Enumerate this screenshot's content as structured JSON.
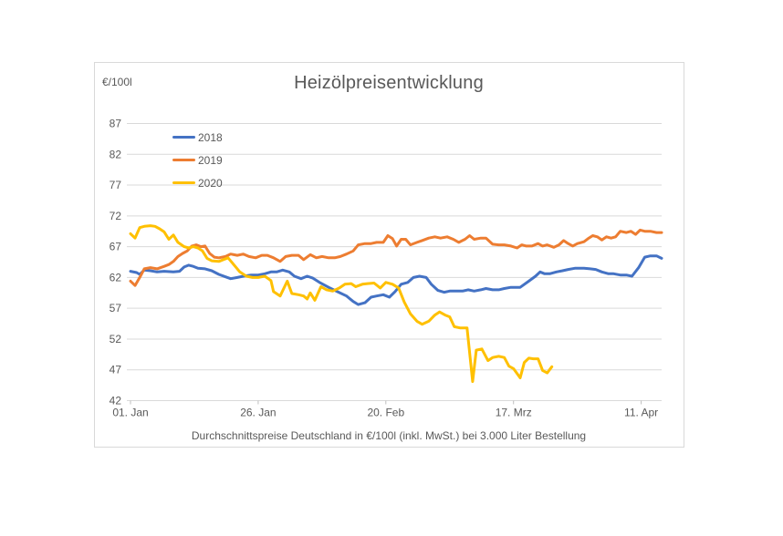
{
  "chart_data": {
    "type": "line",
    "title": "Heizölpreisentwicklung",
    "unit_label": "€/100l",
    "subtitle": "Durchschnittspreise Deutschland in €/100l (inkl. MwSt.) bei 3.000 Liter Bestellung",
    "grid": true,
    "legend_position": "top-left-inside",
    "ylim": [
      42,
      87
    ],
    "y_ticks": [
      42,
      47,
      52,
      57,
      62,
      67,
      72,
      77,
      82,
      87
    ],
    "xlim_days": [
      0,
      104
    ],
    "x_ticks": [
      {
        "day": 0,
        "label": "01. Jan"
      },
      {
        "day": 25,
        "label": "26. Jan"
      },
      {
        "day": 50,
        "label": "20. Feb"
      },
      {
        "day": 75,
        "label": "17. Mrz"
      },
      {
        "day": 100,
        "label": "11. Apr"
      }
    ],
    "colors": {
      "grid": "#d9d9d9",
      "axis": "#bfbfbf",
      "text": "#595959"
    },
    "series": [
      {
        "name": "2018",
        "color": "#4472C4",
        "points": [
          [
            0,
            63
          ],
          [
            1.2,
            62.8
          ],
          [
            1.8,
            62.5
          ],
          [
            2.7,
            63.2
          ],
          [
            3.9,
            63.1
          ],
          [
            5.2,
            62.9
          ],
          [
            6.6,
            63
          ],
          [
            8.4,
            62.9
          ],
          [
            9.6,
            63
          ],
          [
            10.5,
            63.7
          ],
          [
            11.4,
            64
          ],
          [
            12.3,
            63.8
          ],
          [
            13.2,
            63.5
          ],
          [
            14.6,
            63.4
          ],
          [
            15.9,
            63.1
          ],
          [
            17.3,
            62.5
          ],
          [
            18.6,
            62.1
          ],
          [
            19.6,
            61.8
          ],
          [
            20.9,
            62
          ],
          [
            22.1,
            62.2
          ],
          [
            23.6,
            62.4
          ],
          [
            25,
            62.4
          ],
          [
            26.3,
            62.6
          ],
          [
            27.5,
            62.9
          ],
          [
            28.6,
            62.9
          ],
          [
            29.8,
            63.2
          ],
          [
            31.1,
            62.9
          ],
          [
            32.1,
            62.2
          ],
          [
            33.4,
            61.8
          ],
          [
            34.6,
            62.2
          ],
          [
            35.7,
            61.9
          ],
          [
            37,
            61.2
          ],
          [
            38.8,
            60.4
          ],
          [
            40.5,
            59.7
          ],
          [
            42.3,
            59
          ],
          [
            43.6,
            58.1
          ],
          [
            44.6,
            57.6
          ],
          [
            45.9,
            57.9
          ],
          [
            47.1,
            58.8
          ],
          [
            48.2,
            59
          ],
          [
            49.5,
            59.2
          ],
          [
            50.7,
            58.8
          ],
          [
            51.8,
            59.7
          ],
          [
            53,
            60.9
          ],
          [
            54.3,
            61.2
          ],
          [
            55.4,
            62
          ],
          [
            56.6,
            62.2
          ],
          [
            57.9,
            62
          ],
          [
            58.9,
            60.9
          ],
          [
            60.2,
            59.9
          ],
          [
            61.4,
            59.6
          ],
          [
            62.5,
            59.8
          ],
          [
            63.8,
            59.8
          ],
          [
            65,
            59.8
          ],
          [
            66.1,
            60
          ],
          [
            67.3,
            59.8
          ],
          [
            68.6,
            60
          ],
          [
            69.6,
            60.2
          ],
          [
            70.9,
            60
          ],
          [
            72.1,
            60
          ],
          [
            73.2,
            60.2
          ],
          [
            74.5,
            60.4
          ],
          [
            76.3,
            60.4
          ],
          [
            78,
            61.4
          ],
          [
            79.3,
            62.2
          ],
          [
            80.2,
            62.9
          ],
          [
            81.1,
            62.6
          ],
          [
            82.1,
            62.6
          ],
          [
            83.4,
            62.9
          ],
          [
            84.6,
            63.1
          ],
          [
            85.7,
            63.3
          ],
          [
            87,
            63.5
          ],
          [
            88.8,
            63.5
          ],
          [
            90,
            63.4
          ],
          [
            91.1,
            63.3
          ],
          [
            92.3,
            62.9
          ],
          [
            93.6,
            62.6
          ],
          [
            94.6,
            62.6
          ],
          [
            95.9,
            62.4
          ],
          [
            97.1,
            62.4
          ],
          [
            98.2,
            62.2
          ],
          [
            99.5,
            63.6
          ],
          [
            100.7,
            65.3
          ],
          [
            101.8,
            65.5
          ],
          [
            103,
            65.5
          ],
          [
            104,
            65.1
          ]
        ]
      },
      {
        "name": "2019",
        "color": "#ED7D31",
        "points": [
          [
            0,
            61.4
          ],
          [
            0.9,
            60.7
          ],
          [
            1.8,
            62
          ],
          [
            2.7,
            63.4
          ],
          [
            3.9,
            63.6
          ],
          [
            5.2,
            63.4
          ],
          [
            6.6,
            63.8
          ],
          [
            7.5,
            64.1
          ],
          [
            8.4,
            64.6
          ],
          [
            9.3,
            65.4
          ],
          [
            10.2,
            65.9
          ],
          [
            11.1,
            66.3
          ],
          [
            12,
            67.1
          ],
          [
            12.9,
            67.3
          ],
          [
            13.8,
            67
          ],
          [
            14.6,
            67.1
          ],
          [
            15.5,
            65.9
          ],
          [
            16.4,
            65.3
          ],
          [
            17.3,
            65.2
          ],
          [
            18.6,
            65.4
          ],
          [
            19.6,
            65.8
          ],
          [
            20.9,
            65.6
          ],
          [
            22.1,
            65.8
          ],
          [
            23.2,
            65.4
          ],
          [
            24.5,
            65.2
          ],
          [
            25.7,
            65.6
          ],
          [
            26.8,
            65.6
          ],
          [
            28,
            65.2
          ],
          [
            29.3,
            64.6
          ],
          [
            30.4,
            65.4
          ],
          [
            31.6,
            65.6
          ],
          [
            32.9,
            65.6
          ],
          [
            33.9,
            64.9
          ],
          [
            35.2,
            65.7
          ],
          [
            36.4,
            65.2
          ],
          [
            37.5,
            65.4
          ],
          [
            38.8,
            65.2
          ],
          [
            40,
            65.2
          ],
          [
            41.1,
            65.4
          ],
          [
            42.3,
            65.8
          ],
          [
            43.6,
            66.3
          ],
          [
            44.6,
            67.3
          ],
          [
            45.9,
            67.5
          ],
          [
            47.1,
            67.5
          ],
          [
            48.2,
            67.7
          ],
          [
            49.5,
            67.7
          ],
          [
            50.4,
            68.8
          ],
          [
            51.3,
            68.3
          ],
          [
            52.1,
            67.1
          ],
          [
            53,
            68.2
          ],
          [
            53.9,
            68.2
          ],
          [
            54.8,
            67.3
          ],
          [
            56.1,
            67.7
          ],
          [
            57.1,
            68
          ],
          [
            58.4,
            68.4
          ],
          [
            59.6,
            68.6
          ],
          [
            60.7,
            68.4
          ],
          [
            62,
            68.6
          ],
          [
            63.2,
            68.2
          ],
          [
            64.3,
            67.7
          ],
          [
            65.5,
            68.2
          ],
          [
            66.4,
            68.8
          ],
          [
            67.3,
            68.2
          ],
          [
            68.6,
            68.4
          ],
          [
            69.6,
            68.4
          ],
          [
            70.9,
            67.4
          ],
          [
            72.1,
            67.3
          ],
          [
            73.2,
            67.3
          ],
          [
            74.5,
            67.1
          ],
          [
            75.7,
            66.8
          ],
          [
            76.6,
            67.3
          ],
          [
            77.5,
            67.1
          ],
          [
            78.6,
            67.1
          ],
          [
            79.8,
            67.5
          ],
          [
            80.7,
            67.1
          ],
          [
            81.6,
            67.3
          ],
          [
            82.9,
            66.9
          ],
          [
            83.9,
            67.3
          ],
          [
            84.8,
            68
          ],
          [
            85.7,
            67.5
          ],
          [
            86.6,
            67.1
          ],
          [
            87.5,
            67.5
          ],
          [
            88.8,
            67.8
          ],
          [
            89.6,
            68.3
          ],
          [
            90.5,
            68.8
          ],
          [
            91.4,
            68.6
          ],
          [
            92.3,
            68.1
          ],
          [
            93.2,
            68.6
          ],
          [
            94.1,
            68.4
          ],
          [
            95,
            68.6
          ],
          [
            95.9,
            69.5
          ],
          [
            97.1,
            69.3
          ],
          [
            98,
            69.5
          ],
          [
            98.9,
            69
          ],
          [
            99.8,
            69.7
          ],
          [
            100.7,
            69.5
          ],
          [
            101.8,
            69.5
          ],
          [
            103,
            69.3
          ],
          [
            104,
            69.3
          ]
        ]
      },
      {
        "name": "2020",
        "color": "#FFC000",
        "points": [
          [
            0,
            69.1
          ],
          [
            0.9,
            68.4
          ],
          [
            1.8,
            70.1
          ],
          [
            2.7,
            70.3
          ],
          [
            3.9,
            70.4
          ],
          [
            4.8,
            70.3
          ],
          [
            5.7,
            69.9
          ],
          [
            6.6,
            69.4
          ],
          [
            7.5,
            68.2
          ],
          [
            8.4,
            68.9
          ],
          [
            9.3,
            67.7
          ],
          [
            10.5,
            67
          ],
          [
            11.4,
            66.8
          ],
          [
            12.3,
            67
          ],
          [
            13.2,
            66.8
          ],
          [
            14.1,
            66.3
          ],
          [
            15,
            65.1
          ],
          [
            15.9,
            64.7
          ],
          [
            17.3,
            64.6
          ],
          [
            18.2,
            64.9
          ],
          [
            19.1,
            65.2
          ],
          [
            20.4,
            63.9
          ],
          [
            21.4,
            62.9
          ],
          [
            22.7,
            62.2
          ],
          [
            23.9,
            62
          ],
          [
            25,
            62
          ],
          [
            26.3,
            62.2
          ],
          [
            27.5,
            61.5
          ],
          [
            28,
            59.7
          ],
          [
            29.3,
            59
          ],
          [
            30.7,
            61.4
          ],
          [
            31.6,
            59.4
          ],
          [
            32.9,
            59.2
          ],
          [
            33.9,
            59
          ],
          [
            34.6,
            58.5
          ],
          [
            35.2,
            59.5
          ],
          [
            36.1,
            58.3
          ],
          [
            37.3,
            60.5
          ],
          [
            38.4,
            60
          ],
          [
            39.6,
            59.8
          ],
          [
            40.9,
            60.3
          ],
          [
            42,
            60.9
          ],
          [
            43.2,
            61
          ],
          [
            44.1,
            60.5
          ],
          [
            45.4,
            60.9
          ],
          [
            46.4,
            61
          ],
          [
            47.7,
            61.1
          ],
          [
            48.9,
            60.3
          ],
          [
            50,
            61.2
          ],
          [
            51.3,
            60.9
          ],
          [
            52.5,
            60.3
          ],
          [
            53.6,
            58
          ],
          [
            54.8,
            56.1
          ],
          [
            56.1,
            54.9
          ],
          [
            57.1,
            54.4
          ],
          [
            58.4,
            54.9
          ],
          [
            59.6,
            55.9
          ],
          [
            60.5,
            56.4
          ],
          [
            61.6,
            55.9
          ],
          [
            62.5,
            55.6
          ],
          [
            63.4,
            54
          ],
          [
            64.6,
            53.8
          ],
          [
            65.9,
            53.8
          ],
          [
            67,
            45.1
          ],
          [
            67.7,
            50.2
          ],
          [
            68.8,
            50.4
          ],
          [
            70,
            48.5
          ],
          [
            70.9,
            49
          ],
          [
            72.1,
            49.2
          ],
          [
            73.2,
            49
          ],
          [
            74.1,
            47.6
          ],
          [
            75,
            47.2
          ],
          [
            76.3,
            45.7
          ],
          [
            77.1,
            48.2
          ],
          [
            78,
            48.9
          ],
          [
            78.9,
            48.8
          ],
          [
            79.8,
            48.8
          ],
          [
            80.7,
            46.9
          ],
          [
            81.6,
            46.5
          ],
          [
            82.5,
            47.5
          ]
        ]
      }
    ]
  }
}
